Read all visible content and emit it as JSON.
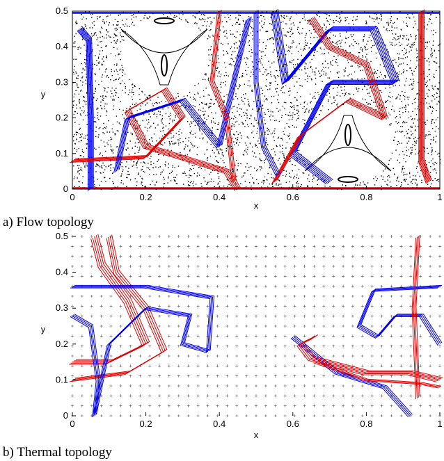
{
  "chart_data": [
    {
      "type": "scatter",
      "caption": "a) Flow topology",
      "xlabel": "x",
      "ylabel": "y",
      "xlim": [
        0,
        1
      ],
      "ylim": [
        0,
        0.5
      ],
      "xticks": [
        "0",
        "0.2",
        "0.4",
        "0.6",
        "0.8",
        "1"
      ],
      "yticks": [
        "0",
        "0.1",
        "0.2",
        "0.3",
        "0.4",
        "0.5"
      ],
      "grid": false,
      "colors": {
        "stable_manifolds": "#0000ee",
        "unstable_manifolds": "#e00000",
        "poincare_points": "#000000"
      },
      "islands": [
        {
          "x": 0.25,
          "y": 0.375
        },
        {
          "x": 0.75,
          "y": 0.125
        }
      ]
    },
    {
      "type": "scatter",
      "caption": "b) Thermal topology",
      "xlabel": "x",
      "ylabel": "y",
      "xlim": [
        0,
        1
      ],
      "ylim": [
        0,
        0.5
      ],
      "xticks": [
        "0",
        "0.2",
        "0.4",
        "0.6",
        "0.8",
        "1"
      ],
      "yticks": [
        "0",
        "0.1",
        "0.2",
        "0.3",
        "0.4",
        "0.5"
      ],
      "grid": false,
      "colors": {
        "stable_manifolds": "#0000ee",
        "unstable_manifolds": "#e00000",
        "poincare_points": "#000000"
      }
    }
  ]
}
